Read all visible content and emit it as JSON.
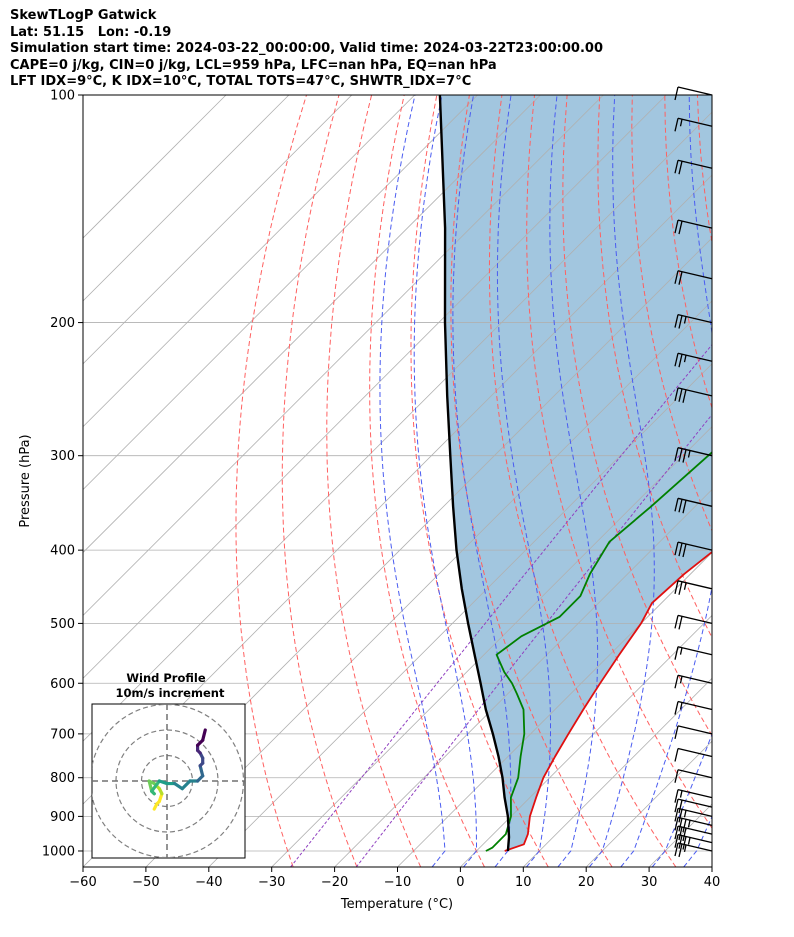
{
  "header": {
    "line1": "SkewTLogP Gatwick",
    "line2": "Lat: 51.15   Lon: -0.19",
    "line3": "Simulation start time: 2024-03-22_00:00:00, Valid time: 2024-03-22T23:00:00.00",
    "line4": "CAPE=0 j/kg, CIN=0 j/kg, LCL=959 hPa, LFC=nan hPa, EQ=nan hPa",
    "line5": "LFT IDX=9°C, K IDX=10°C, TOTAL TOTS=47°C, SHWTR_IDX=7°C"
  },
  "chart_data": {
    "type": "line",
    "subtype": "skew-t log-p",
    "xlabel": "Temperature (°C)",
    "ylabel": "Pressure (hPa)",
    "xlim": [
      -60,
      40
    ],
    "ylim": [
      1050,
      100
    ],
    "x_ticks": [
      "−60",
      "−50",
      "−40",
      "−30",
      "−20",
      "−10",
      "0",
      "10",
      "20",
      "30",
      "40"
    ],
    "y_ticks": [
      "100",
      "200",
      "300",
      "400",
      "500",
      "600",
      "700",
      "800",
      "900",
      "1000"
    ],
    "grid": true,
    "colors": {
      "temperature": "#e01010",
      "dewpoint": "#008000",
      "parcel": "#000000",
      "fill": "#a2c6df",
      "dry_adiabat": "#ff6060",
      "moist_adiabat": "#4a5cf0",
      "mixing_ratio": "#9040c0"
    },
    "series": [
      {
        "name": "Temperature",
        "points": [
          [
            1000,
            4.5
          ],
          [
            980,
            6.5
          ],
          [
            950,
            5.5
          ],
          [
            900,
            3
          ],
          [
            850,
            1
          ],
          [
            800,
            -1
          ],
          [
            750,
            -2.5
          ],
          [
            700,
            -4
          ],
          [
            650,
            -5.5
          ],
          [
            600,
            -7
          ],
          [
            550,
            -8.5
          ],
          [
            500,
            -10
          ],
          [
            470,
            -11.5
          ],
          [
            430,
            -11
          ],
          [
            400,
            -10
          ],
          [
            360,
            -8
          ],
          [
            330,
            -10
          ],
          [
            300,
            -12
          ],
          [
            260,
            -14
          ],
          [
            225,
            -15.5
          ],
          [
            210,
            -16
          ],
          [
            195,
            -13.5
          ],
          [
            185,
            -10
          ],
          [
            170,
            -9.5
          ],
          [
            150,
            -9
          ],
          [
            130,
            -8
          ],
          [
            115,
            -7
          ],
          [
            108,
            -6
          ],
          [
            100,
            -4.5
          ]
        ]
      },
      {
        "name": "Dewpoint",
        "points": [
          [
            1000,
            1.5
          ],
          [
            990,
            2
          ],
          [
            950,
            2
          ],
          [
            900,
            0
          ],
          [
            850,
            -3
          ],
          [
            800,
            -5
          ],
          [
            750,
            -8
          ],
          [
            700,
            -11
          ],
          [
            650,
            -15
          ],
          [
            620,
            -18.5
          ],
          [
            600,
            -21
          ],
          [
            580,
            -24
          ],
          [
            550,
            -28
          ],
          [
            520,
            -27
          ],
          [
            490,
            -24
          ],
          [
            460,
            -24
          ],
          [
            430,
            -26
          ],
          [
            390,
            -28
          ],
          [
            350,
            -27
          ],
          [
            300,
            -26
          ],
          [
            260,
            -25
          ],
          [
            230,
            -23
          ],
          [
            210,
            -22.5
          ],
          [
            200,
            -23
          ],
          [
            180,
            -24
          ],
          [
            165,
            -24.5
          ],
          [
            150,
            -22
          ],
          [
            130,
            -18
          ],
          [
            110,
            -14
          ],
          [
            100,
            -11
          ]
        ]
      },
      {
        "name": "Parcel",
        "points": [
          [
            1000,
            5
          ],
          [
            959,
            3
          ],
          [
            900,
            -0.5
          ],
          [
            850,
            -4
          ],
          [
            800,
            -7.5
          ],
          [
            750,
            -11.5
          ],
          [
            700,
            -16
          ],
          [
            650,
            -21
          ],
          [
            600,
            -26
          ],
          [
            550,
            -31.5
          ],
          [
            500,
            -37.5
          ],
          [
            450,
            -44
          ],
          [
            400,
            -51
          ],
          [
            350,
            -58.5
          ],
          [
            300,
            -67
          ],
          [
            250,
            -77
          ],
          [
            200,
            -89
          ],
          [
            150,
            -104
          ],
          [
            100,
            -126
          ]
        ]
      }
    ],
    "wind_barbs": [
      {
        "pressure": 1000,
        "speed_kt": 25
      },
      {
        "pressure": 975,
        "speed_kt": 35
      },
      {
        "pressure": 950,
        "speed_kt": 30
      },
      {
        "pressure": 925,
        "speed_kt": 35
      },
      {
        "pressure": 900,
        "speed_kt": 25
      },
      {
        "pressure": 875,
        "speed_kt": 20
      },
      {
        "pressure": 850,
        "speed_kt": 15
      },
      {
        "pressure": 800,
        "speed_kt": 10
      },
      {
        "pressure": 750,
        "speed_kt": 10
      },
      {
        "pressure": 700,
        "speed_kt": 10
      },
      {
        "pressure": 650,
        "speed_kt": 15
      },
      {
        "pressure": 600,
        "speed_kt": 15
      },
      {
        "pressure": 550,
        "speed_kt": 15
      },
      {
        "pressure": 500,
        "speed_kt": 20
      },
      {
        "pressure": 450,
        "speed_kt": 25
      },
      {
        "pressure": 400,
        "speed_kt": 30
      },
      {
        "pressure": 350,
        "speed_kt": 30
      },
      {
        "pressure": 300,
        "speed_kt": 35
      },
      {
        "pressure": 250,
        "speed_kt": 30
      },
      {
        "pressure": 225,
        "speed_kt": 25
      },
      {
        "pressure": 200,
        "speed_kt": 25
      },
      {
        "pressure": 175,
        "speed_kt": 20
      },
      {
        "pressure": 150,
        "speed_kt": 20
      },
      {
        "pressure": 125,
        "speed_kt": 20
      },
      {
        "pressure": 110,
        "speed_kt": 15
      },
      {
        "pressure": 100,
        "speed_kt": 10
      }
    ],
    "hodograph": {
      "title": "Wind Profile",
      "subtitle": "10m/s increment",
      "ring_increment_ms": 10,
      "uv_points": [
        [
          -5,
          -11
        ],
        [
          -4,
          -9
        ],
        [
          -3,
          -8
        ],
        [
          -2,
          -5
        ],
        [
          -3,
          -3
        ],
        [
          -5,
          -1
        ],
        [
          -7,
          0
        ],
        [
          -6,
          -4
        ],
        [
          -5,
          -5
        ],
        [
          -6,
          -4
        ],
        [
          -3,
          0
        ],
        [
          0,
          -1
        ],
        [
          3,
          -1
        ],
        [
          6,
          -3
        ],
        [
          9,
          0
        ],
        [
          12,
          0
        ],
        [
          14,
          2
        ],
        [
          13,
          6
        ],
        [
          14,
          7
        ],
        [
          14,
          9
        ],
        [
          13,
          11
        ],
        [
          12,
          12
        ],
        [
          12,
          14
        ],
        [
          14,
          16
        ],
        [
          15,
          20
        ]
      ],
      "colormap": [
        "#fde725",
        "#b5de2b",
        "#6ece58",
        "#35b779",
        "#1f9e89",
        "#26828e",
        "#31688e",
        "#3e4989",
        "#482878",
        "#440154"
      ]
    }
  }
}
